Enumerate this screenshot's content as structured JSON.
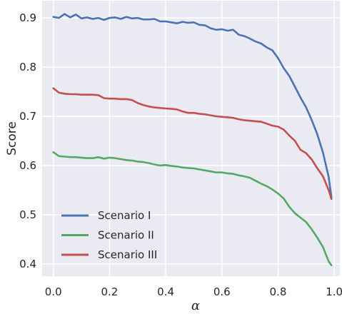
{
  "chart_data": {
    "type": "line",
    "xlabel": "α",
    "ylabel": "Score",
    "xlim": [
      -0.04,
      1.02
    ],
    "ylim": [
      0.375,
      0.935
    ],
    "xticks": [
      0.0,
      0.2,
      0.4,
      0.6,
      0.8,
      1.0
    ],
    "xtick_labels": [
      "0.0",
      "0.2",
      "0.4",
      "0.6",
      "0.8",
      "1.0"
    ],
    "yticks": [
      0.4,
      0.5,
      0.6,
      0.7,
      0.8,
      0.9
    ],
    "ytick_labels": [
      "0.4",
      "0.5",
      "0.6",
      "0.7",
      "0.8",
      "0.9"
    ],
    "grid": true,
    "legend_position": "lower-left",
    "background": "#eaeaf2",
    "series": [
      {
        "name": "Scenario I",
        "color": "#4c72b0",
        "x": [
          0.0,
          0.02,
          0.04,
          0.06,
          0.08,
          0.1,
          0.12,
          0.14,
          0.16,
          0.18,
          0.2,
          0.22,
          0.24,
          0.26,
          0.28,
          0.3,
          0.32,
          0.34,
          0.36,
          0.38,
          0.4,
          0.42,
          0.44,
          0.46,
          0.48,
          0.5,
          0.52,
          0.54,
          0.56,
          0.58,
          0.6,
          0.62,
          0.64,
          0.66,
          0.68,
          0.7,
          0.72,
          0.74,
          0.76,
          0.78,
          0.8,
          0.82,
          0.84,
          0.86,
          0.88,
          0.9,
          0.92,
          0.94,
          0.96,
          0.98,
          0.99
        ],
        "y": [
          0.902,
          0.9,
          0.908,
          0.901,
          0.907,
          0.899,
          0.901,
          0.898,
          0.9,
          0.896,
          0.9,
          0.901,
          0.898,
          0.902,
          0.899,
          0.9,
          0.897,
          0.897,
          0.898,
          0.893,
          0.893,
          0.891,
          0.889,
          0.892,
          0.89,
          0.891,
          0.886,
          0.885,
          0.879,
          0.876,
          0.877,
          0.874,
          0.876,
          0.866,
          0.863,
          0.858,
          0.852,
          0.848,
          0.84,
          0.834,
          0.818,
          0.798,
          0.782,
          0.76,
          0.738,
          0.718,
          0.692,
          0.663,
          0.626,
          0.577,
          0.535
        ]
      },
      {
        "name": "Scenario II",
        "color": "#55a868",
        "x": [
          0.0,
          0.02,
          0.04,
          0.06,
          0.08,
          0.1,
          0.12,
          0.14,
          0.16,
          0.18,
          0.2,
          0.22,
          0.24,
          0.26,
          0.28,
          0.3,
          0.32,
          0.34,
          0.36,
          0.38,
          0.4,
          0.42,
          0.44,
          0.46,
          0.48,
          0.5,
          0.52,
          0.54,
          0.56,
          0.58,
          0.6,
          0.62,
          0.64,
          0.66,
          0.68,
          0.7,
          0.72,
          0.74,
          0.76,
          0.78,
          0.8,
          0.82,
          0.84,
          0.86,
          0.88,
          0.9,
          0.92,
          0.94,
          0.96,
          0.98,
          0.99
        ],
        "y": [
          0.627,
          0.619,
          0.618,
          0.617,
          0.617,
          0.616,
          0.615,
          0.615,
          0.617,
          0.614,
          0.616,
          0.615,
          0.613,
          0.611,
          0.61,
          0.608,
          0.607,
          0.605,
          0.602,
          0.6,
          0.601,
          0.599,
          0.598,
          0.596,
          0.595,
          0.594,
          0.592,
          0.59,
          0.588,
          0.586,
          0.586,
          0.584,
          0.583,
          0.58,
          0.578,
          0.575,
          0.569,
          0.563,
          0.558,
          0.551,
          0.543,
          0.533,
          0.516,
          0.503,
          0.494,
          0.485,
          0.47,
          0.453,
          0.434,
          0.405,
          0.397
        ]
      },
      {
        "name": "Scenario III",
        "color": "#c44e52",
        "x": [
          0.0,
          0.02,
          0.04,
          0.06,
          0.08,
          0.1,
          0.12,
          0.14,
          0.16,
          0.18,
          0.2,
          0.22,
          0.24,
          0.26,
          0.28,
          0.3,
          0.32,
          0.34,
          0.36,
          0.38,
          0.4,
          0.42,
          0.44,
          0.46,
          0.48,
          0.5,
          0.52,
          0.54,
          0.56,
          0.58,
          0.6,
          0.62,
          0.64,
          0.66,
          0.68,
          0.7,
          0.72,
          0.74,
          0.76,
          0.78,
          0.8,
          0.82,
          0.84,
          0.86,
          0.88,
          0.9,
          0.92,
          0.94,
          0.96,
          0.98,
          0.99
        ],
        "y": [
          0.757,
          0.748,
          0.746,
          0.745,
          0.745,
          0.744,
          0.744,
          0.744,
          0.743,
          0.737,
          0.736,
          0.736,
          0.735,
          0.735,
          0.733,
          0.727,
          0.723,
          0.72,
          0.718,
          0.717,
          0.716,
          0.715,
          0.714,
          0.71,
          0.707,
          0.707,
          0.705,
          0.704,
          0.702,
          0.7,
          0.699,
          0.698,
          0.697,
          0.694,
          0.692,
          0.691,
          0.69,
          0.689,
          0.685,
          0.681,
          0.679,
          0.673,
          0.661,
          0.65,
          0.632,
          0.625,
          0.612,
          0.594,
          0.578,
          0.55,
          0.532
        ]
      }
    ]
  }
}
